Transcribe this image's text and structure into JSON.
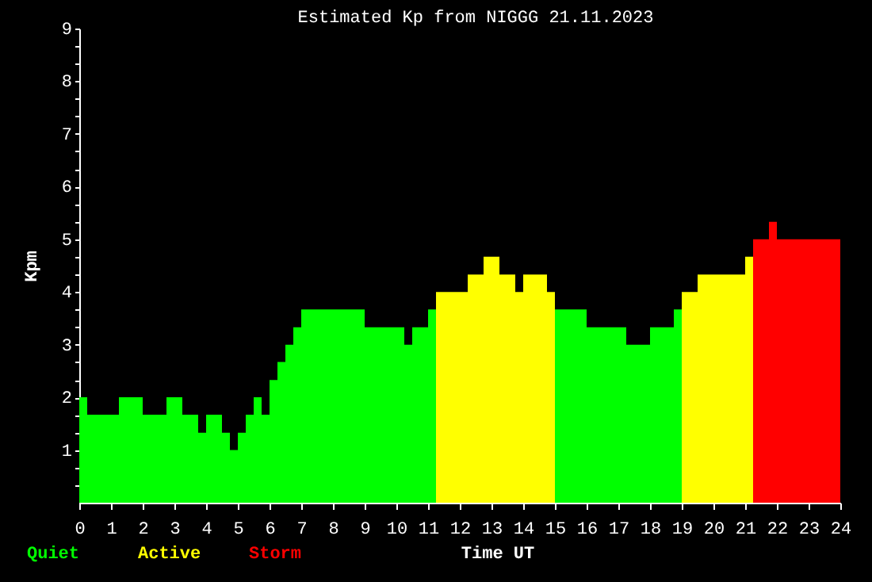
{
  "chart_data": {
    "type": "histogram",
    "title": "Estimated Kp from NIGGG 21.11.2023",
    "xlabel": "Time UT",
    "ylabel": "Kpm",
    "bins": [
      0,
      0.25,
      1.25,
      2,
      2.75,
      3.25,
      3.75,
      4,
      4.5,
      4.75,
      5,
      5.25,
      5.5,
      5.75,
      6,
      6.25,
      6.5,
      6.75,
      7,
      9,
      10.25,
      10.5,
      11,
      11.25,
      12.25,
      12.75,
      13.25,
      13.75,
      14,
      14.75,
      15,
      16,
      17.25,
      18,
      18.75,
      19,
      19.5,
      21,
      21.25,
      21.75,
      22,
      24
    ],
    "series": [
      {
        "name": "Quiet",
        "color": "#00ff00",
        "values": [
          2,
          1.67,
          2,
          1.67,
          2,
          1.67,
          1.33,
          1.67,
          1.33,
          1,
          1.33,
          1.67,
          2,
          1.67,
          2.33,
          2.67,
          3,
          3.33,
          3.67,
          3.33,
          3,
          3.33,
          3.67,
          null,
          null,
          null,
          null,
          null,
          null,
          null,
          3.67,
          3.33,
          3,
          3.33,
          3.67,
          null,
          null,
          null,
          null,
          null,
          null
        ]
      },
      {
        "name": "Active",
        "color": "#ffff00",
        "values": [
          null,
          null,
          null,
          null,
          null,
          null,
          null,
          null,
          null,
          null,
          null,
          null,
          null,
          null,
          null,
          null,
          null,
          null,
          null,
          null,
          null,
          null,
          null,
          4,
          4.33,
          4.67,
          4.33,
          4,
          4.33,
          4,
          null,
          null,
          null,
          null,
          null,
          4,
          4.33,
          4.67,
          null,
          null,
          null
        ]
      },
      {
        "name": "Storm",
        "color": "#ff0000",
        "values": [
          null,
          null,
          null,
          null,
          null,
          null,
          null,
          null,
          null,
          null,
          null,
          null,
          null,
          null,
          null,
          null,
          null,
          null,
          null,
          null,
          null,
          null,
          null,
          null,
          null,
          null,
          null,
          null,
          null,
          null,
          null,
          null,
          null,
          null,
          null,
          null,
          null,
          null,
          5,
          5.33,
          5
        ]
      }
    ],
    "xlim": [
      0,
      24
    ],
    "xticks": [
      0,
      1,
      2,
      3,
      4,
      5,
      6,
      7,
      8,
      9,
      10,
      11,
      12,
      13,
      14,
      15,
      16,
      17,
      18,
      19,
      20,
      21,
      22,
      23,
      24
    ],
    "ylim": [
      0,
      9
    ],
    "yticks": [
      {
        "value": 0.33,
        "label": null
      },
      {
        "value": 0.67,
        "label": null
      },
      1,
      {
        "value": 1.33,
        "label": null
      },
      {
        "value": 1.67,
        "label": null
      },
      2,
      {
        "value": 2.33,
        "label": null
      },
      {
        "value": 2.67,
        "label": null
      },
      3,
      {
        "value": 3.33,
        "label": null
      },
      {
        "value": 3.67,
        "label": null
      },
      4,
      {
        "value": 4.33,
        "label": null
      },
      {
        "value": 4.67,
        "label": null
      },
      5,
      {
        "value": 5.33,
        "label": null
      },
      {
        "value": 5.67,
        "label": null
      },
      6,
      {
        "value": 6.33,
        "label": null
      },
      {
        "value": 6.67,
        "label": null
      },
      7,
      {
        "value": 7.33,
        "label": null
      },
      {
        "value": 7.67,
        "label": null
      },
      8,
      {
        "value": 8.33,
        "label": null
      },
      {
        "value": 8.67,
        "label": null
      },
      9
    ],
    "grid": false,
    "legend": "bottom left"
  }
}
